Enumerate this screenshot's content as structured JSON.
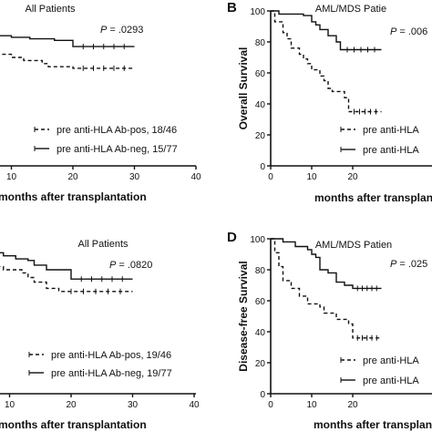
{
  "chart_data": [
    {
      "type": "line",
      "panel_label": "",
      "title": "All Patients",
      "pvalue": "P = .0293",
      "xlabel": "months after transplantation",
      "ylabel": "",
      "xlim": [
        0,
        40
      ],
      "ylim": [
        0,
        100
      ],
      "x_ticks": [
        "10",
        "20",
        "30",
        "40"
      ],
      "y_ticks": [],
      "series": [
        {
          "name": "pre anti-HLA Ab-pos, 18/46",
          "style": "dashed",
          "steps": [
            [
              0,
              100
            ],
            [
              1,
              93
            ],
            [
              2,
              88
            ],
            [
              3,
              84
            ],
            [
              4,
              80
            ],
            [
              5,
              77
            ],
            [
              6,
              74
            ],
            [
              8,
              72
            ],
            [
              10,
              70
            ],
            [
              12,
              68
            ],
            [
              15,
              66
            ],
            [
              16,
              64
            ],
            [
              20,
              63
            ],
            [
              30,
              63
            ]
          ]
        },
        {
          "name": "pre anti-HLA Ab-neg, 15/77",
          "style": "solid",
          "steps": [
            [
              0,
              100
            ],
            [
              1,
              96
            ],
            [
              3,
              92
            ],
            [
              4,
              89
            ],
            [
              6,
              86
            ],
            [
              8,
              84
            ],
            [
              10,
              83
            ],
            [
              13,
              82
            ],
            [
              17,
              81
            ],
            [
              20,
              77
            ],
            [
              30,
              77
            ]
          ]
        }
      ]
    },
    {
      "type": "line",
      "panel_label": "B",
      "title": "AML/MDS Patie",
      "pvalue": "P = .006",
      "xlabel": "months after transplan",
      "ylabel": "Overall Survival",
      "xlim": [
        0,
        40
      ],
      "ylim": [
        0,
        100
      ],
      "x_ticks": [
        "0",
        "10",
        "20"
      ],
      "y_ticks": [
        "0",
        "20",
        "40",
        "60",
        "80",
        "100"
      ],
      "series": [
        {
          "name": "pre anti-HLA",
          "style": "dashed",
          "steps": [
            [
              0,
              100
            ],
            [
              1,
              93
            ],
            [
              3,
              86
            ],
            [
              4,
              82
            ],
            [
              5,
              76
            ],
            [
              7,
              72
            ],
            [
              8,
              69
            ],
            [
              9,
              66
            ],
            [
              10,
              62
            ],
            [
              12,
              58
            ],
            [
              13,
              55
            ],
            [
              14,
              50
            ],
            [
              15,
              48
            ],
            [
              18,
              44
            ],
            [
              19,
              35
            ],
            [
              27,
              35
            ]
          ]
        },
        {
          "name": "pre anti-HLA",
          "style": "solid",
          "steps": [
            [
              0,
              100
            ],
            [
              2,
              98
            ],
            [
              8,
              97
            ],
            [
              10,
              93
            ],
            [
              11,
              91
            ],
            [
              12,
              88
            ],
            [
              14,
              84
            ],
            [
              16,
              80
            ],
            [
              17,
              75
            ],
            [
              27,
              75
            ]
          ]
        }
      ]
    },
    {
      "type": "line",
      "panel_label": "",
      "title": "All Patients",
      "pvalue": "P = .0820",
      "xlabel": "months after transplantation",
      "ylabel": "",
      "xlim": [
        0,
        40
      ],
      "ylim": [
        0,
        100
      ],
      "x_ticks": [
        "10",
        "20",
        "30",
        "40"
      ],
      "y_ticks": [],
      "series": [
        {
          "name": "pre anti-HLA Ab-pos, 19/46",
          "style": "dashed",
          "steps": [
            [
              0,
              100
            ],
            [
              1,
              96
            ],
            [
              3,
              92
            ],
            [
              4,
              88
            ],
            [
              6,
              85
            ],
            [
              8,
              82
            ],
            [
              9,
              80
            ],
            [
              12,
              78
            ],
            [
              13,
              75
            ],
            [
              14,
              72
            ],
            [
              16,
              68
            ],
            [
              18,
              66
            ],
            [
              30,
              66
            ]
          ]
        },
        {
          "name": "pre anti-HLA Ab-neg, 19/77",
          "style": "solid",
          "steps": [
            [
              0,
              100
            ],
            [
              1,
              98
            ],
            [
              3,
              96
            ],
            [
              5,
              93
            ],
            [
              7,
              91
            ],
            [
              9,
              89
            ],
            [
              11,
              87
            ],
            [
              13,
              86
            ],
            [
              14,
              83
            ],
            [
              16,
              80
            ],
            [
              20,
              74
            ],
            [
              30,
              74
            ]
          ]
        }
      ]
    },
    {
      "type": "line",
      "panel_label": "D",
      "title": "AML/MDS Patien",
      "pvalue": "P = .025",
      "xlabel": "months after transplan",
      "ylabel": "Disease-free Survival",
      "xlim": [
        0,
        40
      ],
      "ylim": [
        0,
        100
      ],
      "x_ticks": [
        "0",
        "10",
        "20"
      ],
      "y_ticks": [
        "0",
        "20",
        "40",
        "60",
        "80",
        "100"
      ],
      "series": [
        {
          "name": "pre anti-HLA",
          "style": "dashed",
          "steps": [
            [
              0,
              100
            ],
            [
              1,
              91
            ],
            [
              2,
              82
            ],
            [
              3,
              73
            ],
            [
              5,
              68
            ],
            [
              7,
              63
            ],
            [
              9,
              58
            ],
            [
              12,
              56
            ],
            [
              13,
              52
            ],
            [
              16,
              48
            ],
            [
              19,
              45
            ],
            [
              20,
              36
            ],
            [
              27,
              36
            ]
          ]
        },
        {
          "name": "pre anti-HLA",
          "style": "solid",
          "steps": [
            [
              0,
              100
            ],
            [
              3,
              98
            ],
            [
              6,
              95
            ],
            [
              9,
              93
            ],
            [
              10,
              90
            ],
            [
              11,
              88
            ],
            [
              12,
              80
            ],
            [
              14,
              78
            ],
            [
              16,
              72
            ],
            [
              18,
              70
            ],
            [
              20,
              68
            ],
            [
              27,
              68
            ]
          ]
        }
      ]
    }
  ]
}
